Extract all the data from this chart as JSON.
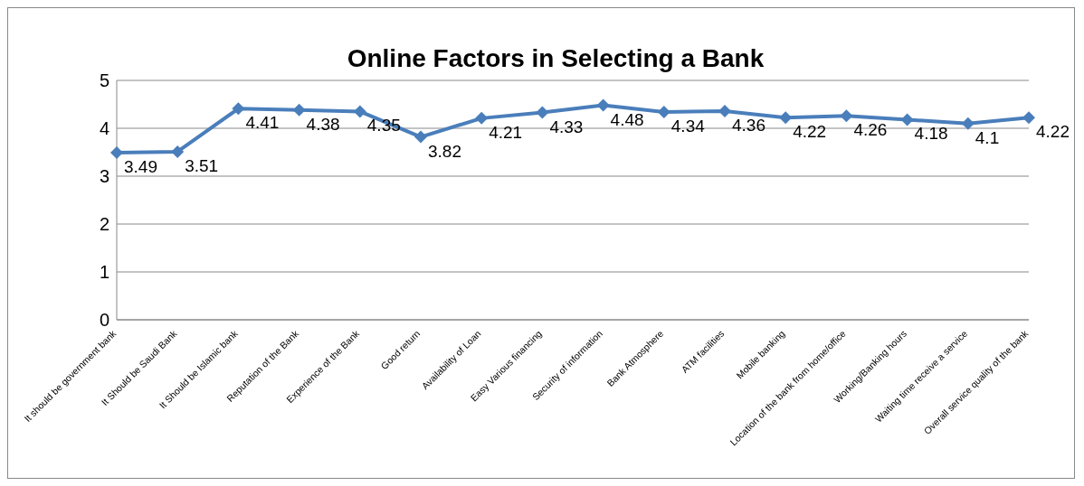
{
  "chart_data": {
    "type": "line",
    "title": "Online Factors in Selecting a Bank",
    "categories": [
      "It should be government bank",
      "It Should be Saudi Bank",
      "It Should be Islamic bank",
      "Reputation of the Bank",
      "Experience of the Bank",
      "Good return",
      "Availability of Loan",
      "Easy Various financing",
      "Security of information",
      "Bank Atmosphere",
      "ATM facilities",
      "Mobile banking",
      "Location of the bank from home/office",
      "Working/Banking hours",
      "Waiting time receive a service",
      "Overall service quality of the bank"
    ],
    "series": [
      {
        "color": "#4a7ebb",
        "values": [
          3.49,
          3.51,
          4.41,
          4.38,
          4.35,
          3.82,
          4.21,
          4.33,
          4.48,
          4.34,
          4.36,
          4.22,
          4.26,
          4.18,
          4.1,
          4.22
        ]
      }
    ],
    "ylim": [
      0,
      5
    ],
    "yticks": [
      0,
      1,
      2,
      3,
      4,
      5
    ],
    "grid": "y",
    "legend": false,
    "marker": "diamond",
    "line_style": "solid",
    "data_labels": true
  }
}
